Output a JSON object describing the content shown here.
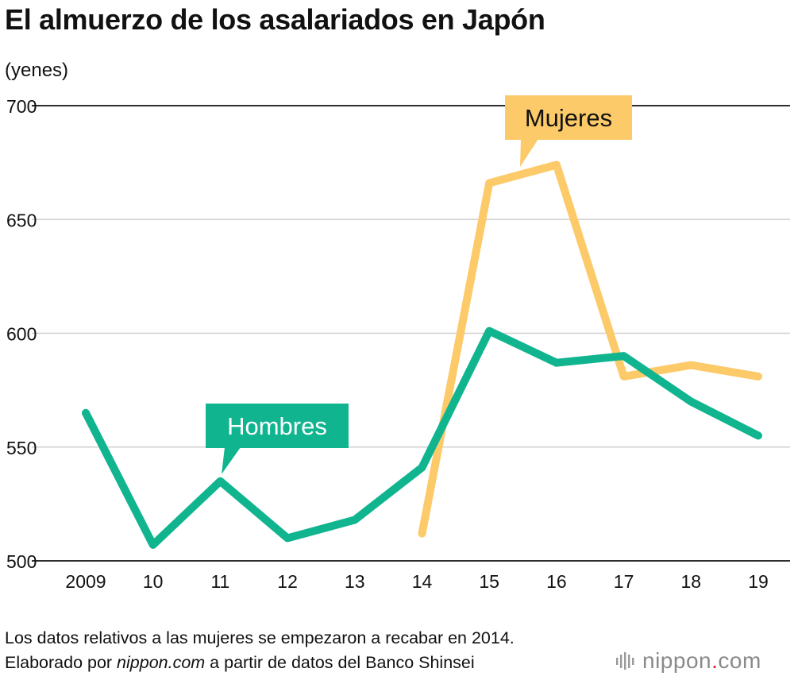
{
  "header": {
    "title": "El almuerzo de los asalariados en Japón",
    "unit": "(yenes)"
  },
  "colors": {
    "men": "#10b58f",
    "women": "#fcca69",
    "grid": "#d0d0d0",
    "axis": "#111111",
    "callout_text_men": "#ffffff",
    "callout_text_women": "#111111"
  },
  "chart_data": {
    "type": "line",
    "categories": [
      "2009",
      "10",
      "11",
      "12",
      "13",
      "14",
      "15",
      "16",
      "17",
      "18",
      "19"
    ],
    "ylim": [
      500,
      700
    ],
    "yticks": [
      500,
      550,
      600,
      650,
      700
    ],
    "series": [
      {
        "name": "Hombres",
        "color": "#10b58f",
        "values": [
          565,
          507,
          535,
          510,
          518,
          541,
          601,
          587,
          590,
          570,
          555
        ]
      },
      {
        "name": "Mujeres",
        "color": "#fcca69",
        "values": [
          null,
          null,
          null,
          null,
          null,
          512,
          666,
          674,
          581,
          586,
          581
        ]
      }
    ],
    "annotations": [
      {
        "label": "Hombres",
        "series": "Hombres",
        "category": "11"
      },
      {
        "label": "Mujeres",
        "series": "Mujeres",
        "category": "16"
      }
    ],
    "title": "El almuerzo de los asalariados en Japón",
    "ylabel": "(yenes)",
    "xlabel": ""
  },
  "footer": {
    "note": "Los datos relativos a las mujeres se empezaron a recabar en 2014.",
    "source_prefix": "Elaborado por ",
    "source_site": "nippon.com",
    "source_suffix": " a partir de datos del Banco Shinsei",
    "logo_name": "nippon",
    "logo_dot": ".",
    "logo_tld": "com"
  }
}
